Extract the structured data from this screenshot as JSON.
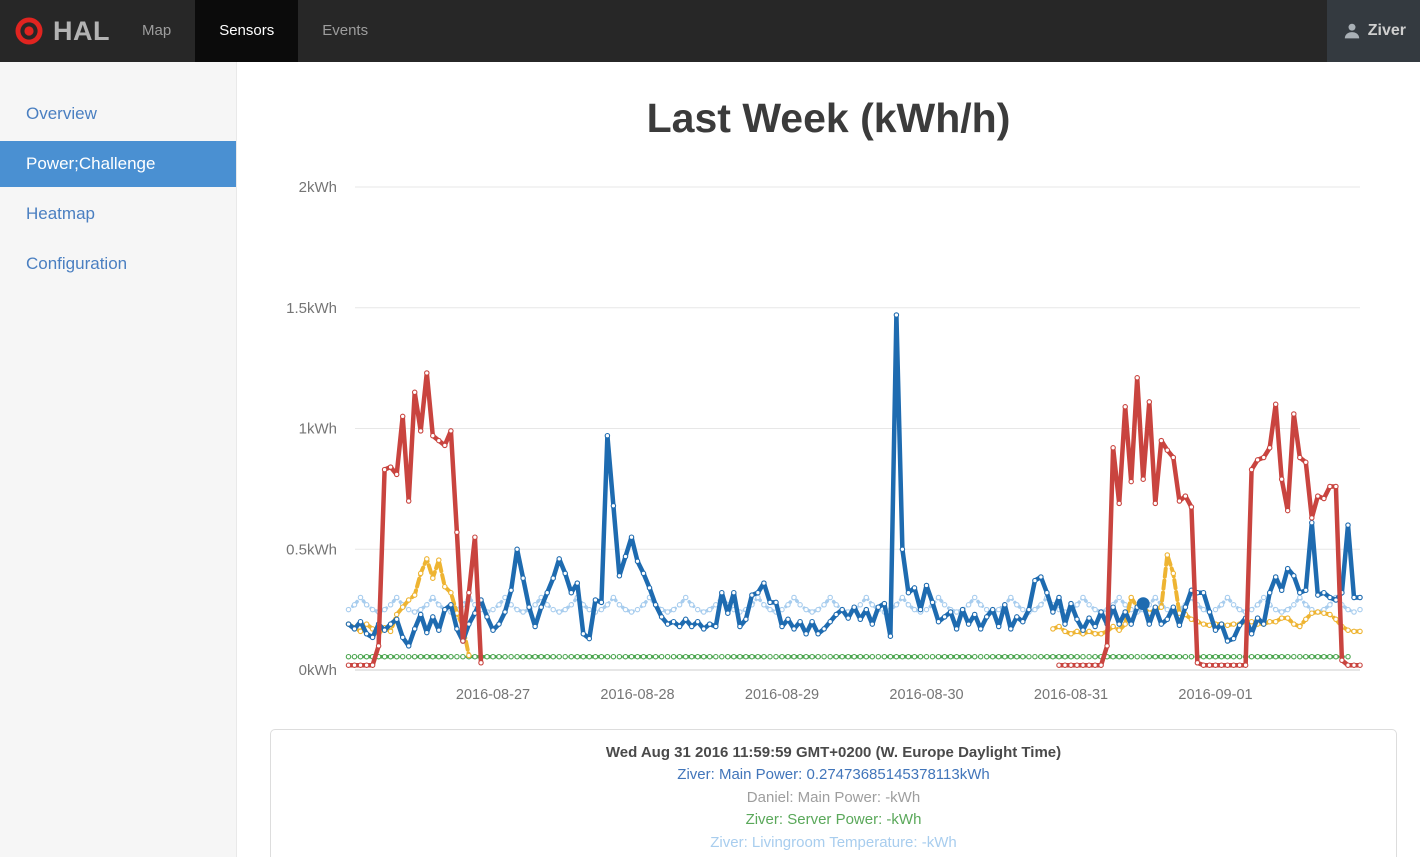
{
  "navbar": {
    "brand": "HAL",
    "items": [
      {
        "label": "Map",
        "active": false
      },
      {
        "label": "Sensors",
        "active": true
      },
      {
        "label": "Events",
        "active": false
      }
    ],
    "user": "Ziver"
  },
  "sidebar": {
    "items": [
      {
        "label": "Overview",
        "active": false
      },
      {
        "label": "Power;Challenge",
        "active": true
      },
      {
        "label": "Heatmap",
        "active": false
      },
      {
        "label": "Configuration",
        "active": false
      }
    ]
  },
  "main": {
    "title": "Last Week (kWh/h)"
  },
  "legend_panel": {
    "timestamp": "Wed Aug 31 2016 11:59:59 GMT+0200 (W. Europe Daylight Time)",
    "entries": [
      {
        "label": "Ziver: Main Power",
        "value": "0.27473685145378113kWh",
        "color": "#4175ba"
      },
      {
        "label": "Daniel: Main Power",
        "value": "-kWh",
        "color": "#9e9e9e"
      },
      {
        "label": "Ziver: Server Power",
        "value": "-kWh",
        "color": "#5aa85a"
      },
      {
        "label": "Ziver: Livingroom Temperature",
        "value": "-kWh",
        "color": "#a8cdee"
      }
    ]
  },
  "chart_data": {
    "type": "line",
    "title": "Last Week (kWh/h)",
    "x_unit": "hours offset from 2016-08-26 00:00",
    "x_range_hours": [
      0,
      168
    ],
    "x_axis": {
      "tick_labels": [
        "2016-08-27",
        "2016-08-28",
        "2016-08-29",
        "2016-08-30",
        "2016-08-31",
        "2016-09-01"
      ],
      "tick_hours": [
        24,
        48,
        72,
        96,
        120,
        144
      ]
    },
    "y_axis": {
      "ticks": [
        {
          "label": "0kWh",
          "v": 0.0
        },
        {
          "label": "0.5kWh",
          "v": 0.5
        },
        {
          "label": "1kWh",
          "v": 1.0
        },
        {
          "label": "1.5kWh",
          "v": 1.5
        },
        {
          "label": "2kWh",
          "v": 2.0
        }
      ],
      "range": [
        0,
        2
      ]
    },
    "grid": true,
    "legend_position": "below-chart",
    "selected_point": {
      "series": "Ziver: Main Power",
      "hour": 132,
      "value": 0.27473685145378113
    },
    "series": [
      {
        "name": "Ziver: Main Power",
        "color": "#1e6bb0",
        "line_style": "solid",
        "width": 4.5,
        "z": 4,
        "segments": [
          {
            "start_hour": 0,
            "values": [
              0.19,
              0.17,
              0.2,
              0.15,
              0.135,
              0.19,
              0.165,
              0.19,
              0.21,
              0.135,
              0.1,
              0.17,
              0.23,
              0.155,
              0.22,
              0.165,
              0.25,
              0.27,
              0.17,
              0.12,
              0.19,
              0.235,
              0.29,
              0.22,
              0.165,
              0.19,
              0.24,
              0.33,
              0.5,
              0.38,
              0.26,
              0.18,
              0.26,
              0.32,
              0.38,
              0.46,
              0.4,
              0.32,
              0.36,
              0.15,
              0.13,
              0.29,
              0.28,
              0.97,
              0.68,
              0.39,
              0.47,
              0.55,
              0.45,
              0.4,
              0.34,
              0.27,
              0.22,
              0.19,
              0.2,
              0.18,
              0.21,
              0.18,
              0.2,
              0.17,
              0.19,
              0.18,
              0.32,
              0.235,
              0.32,
              0.18,
              0.21,
              0.31,
              0.32,
              0.36,
              0.28,
              0.28,
              0.18,
              0.21,
              0.17,
              0.2,
              0.15,
              0.2,
              0.15,
              0.17,
              0.2,
              0.23,
              0.25,
              0.215,
              0.26,
              0.21,
              0.25,
              0.19,
              0.26,
              0.275,
              0.14,
              1.47,
              0.5,
              0.32,
              0.34,
              0.25,
              0.35,
              0.28,
              0.2,
              0.22,
              0.24,
              0.17,
              0.25,
              0.19,
              0.23,
              0.17,
              0.22,
              0.25,
              0.18,
              0.27,
              0.17,
              0.22,
              0.2,
              0.25,
              0.37,
              0.385,
              0.32,
              0.24,
              0.3,
              0.19,
              0.275,
              0.21,
              0.165,
              0.215,
              0.18,
              0.24,
              0.19,
              0.26,
              0.19,
              0.24,
              0.19,
              0.26,
              0.2747,
              0.19,
              0.26,
              0.19,
              0.21,
              0.26,
              0.185,
              0.26,
              0.33,
              0.32,
              0.32,
              0.24,
              0.165,
              0.19,
              0.12,
              0.13,
              0.185,
              0.215,
              0.15,
              0.215,
              0.19,
              0.32,
              0.385,
              0.33,
              0.42,
              0.39,
              0.32,
              0.33,
              0.61,
              0.31,
              0.32,
              0.3,
              0.29,
              0.32,
              0.6,
              0.3,
              0.3
            ]
          }
        ]
      },
      {
        "name": "Daniel: Main Power",
        "color": "#9e9e9e",
        "line_style": "solid",
        "width": 4,
        "z": 0,
        "segments": []
      },
      {
        "name": "Ziver: Server Power",
        "color": "#4aa54e",
        "line_style": "dotted",
        "width": 3.5,
        "z": 2,
        "segments": [
          {
            "start_hour": 0,
            "end_hour": 166,
            "constant": 0.055
          }
        ]
      },
      {
        "name": "Ziver: Livingroom Temperature",
        "color": "#a8cdee",
        "line_style": "dotted",
        "width": 3.5,
        "z": 1,
        "segments": [
          {
            "start_hour": 0,
            "values": [
              0.25,
              0.27,
              0.3,
              0.27,
              0.25,
              0.24,
              0.25,
              0.27,
              0.3,
              0.27,
              0.25,
              0.24,
              0.25,
              0.27,
              0.3,
              0.27,
              0.25,
              0.24,
              0.25,
              0.27,
              0.3,
              0.27,
              0.25,
              0.24,
              0.25,
              0.27,
              0.3,
              0.27,
              0.25,
              0.24,
              0.25,
              0.27,
              0.3,
              0.27,
              0.25,
              0.24,
              0.25,
              0.27,
              0.3,
              0.27,
              0.25,
              0.24,
              0.25,
              0.27,
              0.3,
              0.27,
              0.25,
              0.24,
              0.25,
              0.27,
              0.3,
              0.27,
              0.25,
              0.24,
              0.25,
              0.27,
              0.3,
              0.27,
              0.25,
              0.24,
              0.25,
              0.27,
              0.3,
              0.27,
              0.25,
              0.24,
              0.25,
              0.27,
              0.3,
              0.27,
              0.25,
              0.24,
              0.25,
              0.27,
              0.3,
              0.27,
              0.25,
              0.24,
              0.25,
              0.27,
              0.3,
              0.27,
              0.25,
              0.24,
              0.25,
              0.27,
              0.3,
              0.27,
              0.25,
              0.24,
              0.25,
              0.27,
              0.3,
              0.27,
              0.25,
              0.24,
              0.25,
              0.27,
              0.3,
              0.27,
              0.25,
              0.24,
              0.25,
              0.27,
              0.3,
              0.27,
              0.25,
              0.24,
              0.25,
              0.27,
              0.3,
              0.27,
              0.25,
              0.24,
              0.25,
              0.27,
              0.3,
              0.27,
              0.25,
              0.24,
              0.25,
              0.27,
              0.3,
              0.27,
              0.25,
              0.24,
              0.25,
              0.27,
              0.3,
              0.27,
              0.25,
              0.24,
              0.25,
              0.27,
              0.3,
              0.27,
              0.25,
              0.24,
              0.25,
              0.27,
              0.3,
              0.27,
              0.25,
              0.24,
              0.25,
              0.27,
              0.3,
              0.27,
              0.25,
              0.24,
              0.25,
              0.27,
              0.3,
              0.27,
              0.25,
              0.24,
              0.25,
              0.27,
              0.3,
              0.27,
              0.25,
              0.24,
              0.25,
              0.27,
              0.3,
              0.27,
              0.25,
              0.24,
              0.25
            ]
          }
        ]
      },
      {
        "name": "unlabeled-yellow-series",
        "color": "#eeb432",
        "line_style": "dashed",
        "width": 4,
        "z": 3,
        "segments": [
          {
            "start_hour": 0,
            "values": [
              0.19,
              0.175,
              0.16,
              0.19,
              0.17,
              0.15,
              0.175,
              0.16,
              0.23,
              0.26,
              0.29,
              0.31,
              0.4,
              0.46,
              0.38,
              0.455,
              0.345,
              0.32,
              0.235,
              0.18,
              0.06
            ]
          },
          {
            "start_hour": 117,
            "values": [
              0.17,
              0.18,
              0.16,
              0.15,
              0.16,
              0.15,
              0.16,
              0.15,
              0.15,
              0.16,
              0.18,
              0.165,
              0.19,
              0.3,
              0.26,
              0.26,
              0.235,
              0.25,
              0.26,
              0.476,
              0.4,
              0.235,
              0.23,
              0.21,
              0.2,
              0.19,
              0.185,
              0.19,
              0.19,
              0.185,
              0.19,
              0.19,
              0.2,
              0.2,
              0.19,
              0.19,
              0.2,
              0.2,
              0.215,
              0.215,
              0.19,
              0.18,
              0.21,
              0.235,
              0.24,
              0.235,
              0.23,
              0.21,
              0.18,
              0.165,
              0.16,
              0.16
            ]
          }
        ]
      },
      {
        "name": "unlabeled-red-series",
        "color": "#c9443f",
        "line_style": "solid",
        "width": 4.5,
        "z": 5,
        "segments": [
          {
            "start_hour": 0,
            "values": [
              0.02,
              0.02,
              0.02,
              0.02,
              0.02,
              0.1,
              0.83,
              0.84,
              0.81,
              1.05,
              0.7,
              1.15,
              0.99,
              1.23,
              0.97,
              0.95,
              0.93,
              0.99,
              0.57,
              0.12,
              0.32,
              0.55,
              0.03
            ]
          },
          {
            "start_hour": 118,
            "values": [
              0.02,
              0.02,
              0.02,
              0.02,
              0.02,
              0.02,
              0.02,
              0.02,
              0.1,
              0.92,
              0.69,
              1.09,
              0.78,
              1.21,
              0.79,
              1.11,
              0.69,
              0.95,
              0.91,
              0.88,
              0.7,
              0.72,
              0.675,
              0.03,
              0.02,
              0.02,
              0.02,
              0.02,
              0.02,
              0.02,
              0.02,
              0.02,
              0.83,
              0.87,
              0.88,
              0.92,
              1.1,
              0.79,
              0.66,
              1.06,
              0.88,
              0.86,
              0.63,
              0.72,
              0.71,
              0.76,
              0.76,
              0.04,
              0.02,
              0.02,
              0.02
            ]
          }
        ]
      }
    ]
  }
}
